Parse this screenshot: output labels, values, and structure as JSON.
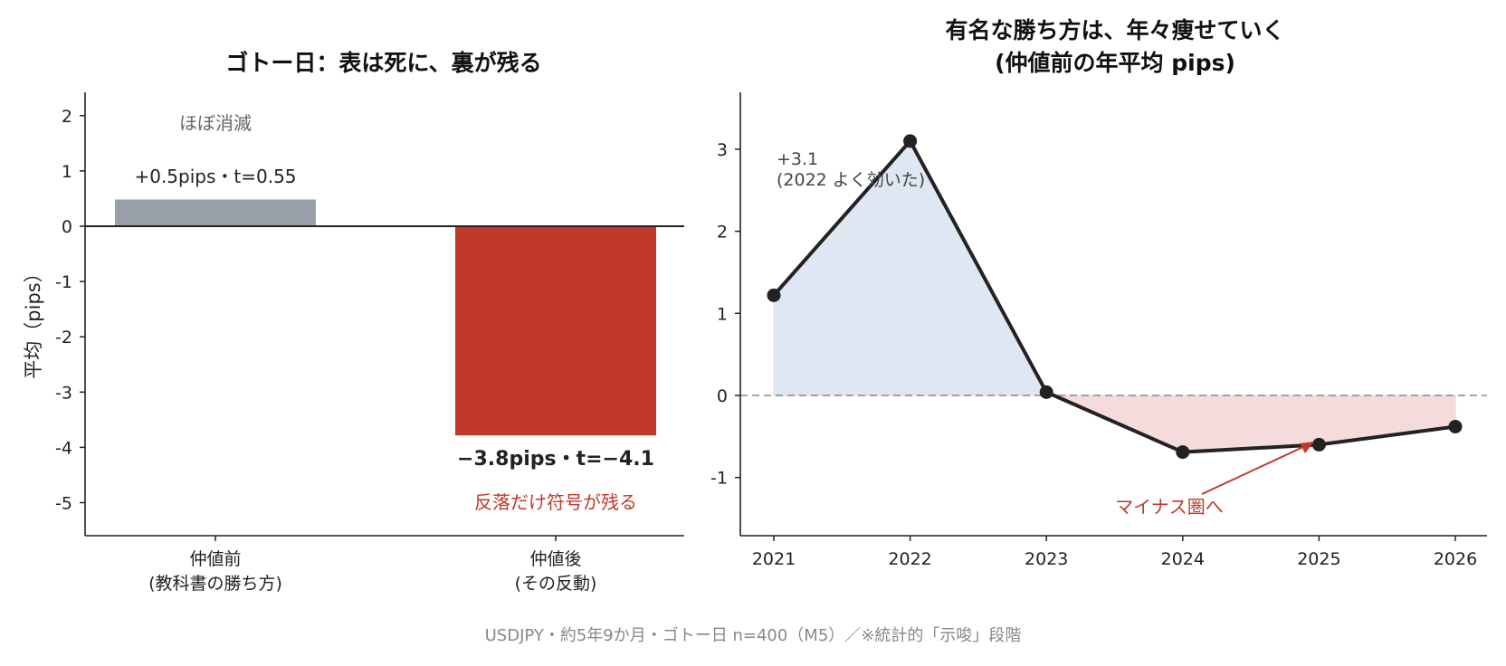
{
  "chart_data": [
    {
      "type": "bar",
      "title": "ゴトー日：表は死に、裏が残る",
      "ylabel": "平均（pips）",
      "categories": [
        "仲値前\n(教科書の勝ち方)",
        "仲値後\n(その反動)"
      ],
      "values": [
        0.5,
        -3.8
      ],
      "colors": [
        "#9aa0a8",
        "#c0392b"
      ],
      "ylim": [
        -5.6,
        2.4
      ],
      "yticks": [
        2,
        1,
        0,
        -1,
        -2,
        -3,
        -4,
        -5
      ],
      "annotations": {
        "left_label": "+0.5pips・t=0.55",
        "left_note": "ほぼ消滅",
        "right_label": "−3.8pips・t=−4.1",
        "right_note": "反落だけ符号が残る"
      }
    },
    {
      "type": "line",
      "title_line1": "有名な勝ち方は、年々痩せていく",
      "title_line2": "(仲値前の年平均 pips)",
      "x": [
        2021,
        2022,
        2023,
        2024,
        2025,
        2026
      ],
      "values": [
        1.22,
        3.1,
        0.04,
        -0.69,
        -0.6,
        -0.38
      ],
      "ylim": [
        -1.7,
        3.7
      ],
      "yticks": [
        3,
        2,
        1,
        0,
        -1
      ],
      "colors": {
        "line": "#222222",
        "positive_fill": "#dfe7f2",
        "negative_fill": "#f4dcdc",
        "zero_line": "#888888",
        "arrow": "#c0392b"
      },
      "annotations": {
        "peak_line1": "+3.1",
        "peak_line2": "(2022 よく効いた)",
        "negative_note": "マイナス圏へ"
      }
    }
  ],
  "footer": "USDJPY・約5年9か月・ゴトー日 n=400（M5）／※統計的「示唆」段階"
}
